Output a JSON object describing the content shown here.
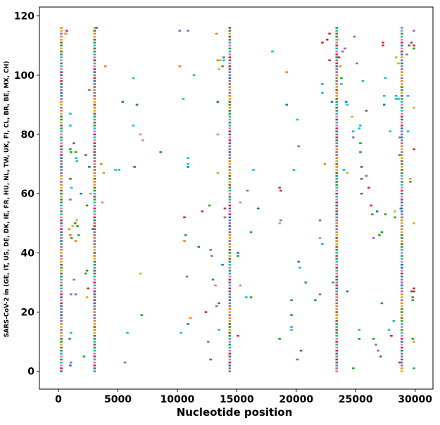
{
  "chart_data": {
    "type": "scatter",
    "title": "",
    "xlabel": "Nucleotide position",
    "ylabel": "SARS-CoV-2 in (GE, IT, US, DE, DK, IE, FR, HU, NL, TW, UK, FI, CL, BR, BE, MX, CH)",
    "xlim": [
      -1600,
      31500
    ],
    "ylim": [
      -6,
      123
    ],
    "xticks": [
      0,
      5000,
      10000,
      15000,
      20000,
      25000,
      30000
    ],
    "xtick_labels": [
      "0",
      "5000",
      "10000",
      "15000",
      "20000",
      "25000",
      "30000"
    ],
    "yticks": [
      0,
      20,
      40,
      60,
      80,
      100,
      120
    ],
    "ytick_labels": [
      "0",
      "20",
      "40",
      "60",
      "80",
      "100",
      "120"
    ],
    "grid": false,
    "legend": "none",
    "palette": [
      "#1f77b4",
      "#ff7f0e",
      "#2ca02c",
      "#d62728",
      "#9467bd",
      "#8c564b",
      "#e377c2",
      "#7f7f7f",
      "#bcbd22",
      "#17becf"
    ],
    "dense_columns": [
      241,
      3037,
      14408,
      23403,
      28881
    ],
    "genome_count": 117,
    "scatter_points": [
      [
        1000,
        87,
        9
      ],
      [
        1000,
        83,
        9
      ],
      [
        1000,
        75,
        2
      ],
      [
        1050,
        74,
        2
      ],
      [
        1000,
        65,
        5
      ],
      [
        1100,
        62,
        9
      ],
      [
        1000,
        58,
        4
      ],
      [
        1200,
        49,
        8
      ],
      [
        900,
        48,
        1
      ],
      [
        1000,
        46,
        1
      ],
      [
        1100,
        45,
        2
      ],
      [
        1050,
        26,
        4
      ],
      [
        1050,
        13,
        9
      ],
      [
        950,
        11,
        2
      ],
      [
        1050,
        3,
        4
      ],
      [
        1000,
        2,
        0
      ],
      [
        1300,
        77,
        5
      ],
      [
        1500,
        72,
        9
      ],
      [
        1550,
        71,
        9
      ],
      [
        1450,
        74,
        2
      ],
      [
        1600,
        49,
        2
      ],
      [
        1700,
        46,
        2
      ],
      [
        1450,
        26,
        4
      ],
      [
        1550,
        51,
        8
      ],
      [
        1300,
        31,
        4
      ],
      [
        1900,
        60,
        0
      ],
      [
        2150,
        5,
        2
      ],
      [
        2400,
        34,
        2
      ],
      [
        2400,
        56,
        2
      ],
      [
        2500,
        28,
        3
      ],
      [
        2600,
        69,
        0
      ],
      [
        2600,
        95,
        7
      ],
      [
        2400,
        25,
        8
      ],
      [
        3200,
        116,
        5
      ],
      [
        3600,
        70,
        1
      ],
      [
        3800,
        67,
        8
      ],
      [
        3700,
        57,
        6
      ],
      [
        3950,
        103,
        1
      ],
      [
        4800,
        68,
        9
      ],
      [
        5100,
        68,
        9
      ],
      [
        5400,
        91,
        0
      ],
      [
        6300,
        99,
        9
      ],
      [
        6300,
        83,
        9
      ],
      [
        6600,
        90,
        0
      ],
      [
        6400,
        69,
        0
      ],
      [
        6900,
        80,
        6
      ],
      [
        7100,
        78,
        6
      ],
      [
        6900,
        33,
        8
      ],
      [
        7000,
        19,
        2
      ],
      [
        5800,
        13,
        9
      ],
      [
        5600,
        3,
        4
      ],
      [
        8600,
        74,
        2
      ],
      [
        10200,
        115,
        4
      ],
      [
        10200,
        103,
        1
      ],
      [
        10500,
        92,
        9
      ],
      [
        10900,
        115,
        4
      ],
      [
        11400,
        100,
        9
      ],
      [
        10600,
        44,
        1
      ],
      [
        10600,
        52,
        3
      ],
      [
        10700,
        46,
        2
      ],
      [
        10800,
        32,
        7
      ],
      [
        10900,
        16,
        0
      ],
      [
        11100,
        18,
        1
      ],
      [
        10900,
        72,
        9
      ],
      [
        10900,
        70,
        9
      ],
      [
        10900,
        69,
        0
      ],
      [
        10300,
        13,
        9
      ],
      [
        11800,
        42,
        0
      ],
      [
        12100,
        54,
        3
      ],
      [
        12400,
        20,
        3
      ],
      [
        12600,
        10,
        7
      ],
      [
        12700,
        56,
        2
      ],
      [
        12900,
        39,
        7
      ],
      [
        12800,
        41,
        4
      ],
      [
        13000,
        31,
        2
      ],
      [
        13300,
        114,
        1
      ],
      [
        13400,
        105,
        1
      ],
      [
        13600,
        105,
        8
      ],
      [
        13500,
        102,
        8
      ],
      [
        13400,
        91,
        0
      ],
      [
        13400,
        80,
        6
      ],
      [
        13400,
        67,
        8
      ],
      [
        13300,
        22,
        4
      ],
      [
        13200,
        29,
        6
      ],
      [
        13500,
        23,
        5
      ],
      [
        13500,
        14,
        9
      ],
      [
        12800,
        4,
        2
      ],
      [
        13800,
        103,
        2
      ],
      [
        13900,
        106,
        2
      ],
      [
        13800,
        36,
        0
      ],
      [
        13900,
        105,
        9
      ],
      [
        14000,
        52,
        7
      ],
      [
        14000,
        55,
        5
      ],
      [
        15100,
        40,
        0
      ],
      [
        15100,
        39,
        2
      ],
      [
        15100,
        12,
        3
      ],
      [
        15300,
        57,
        6
      ],
      [
        15300,
        29,
        6
      ],
      [
        15900,
        61,
        4
      ],
      [
        15800,
        25,
        9
      ],
      [
        16200,
        47,
        2
      ],
      [
        16200,
        25,
        2
      ],
      [
        16400,
        68,
        9
      ],
      [
        16800,
        55,
        0
      ],
      [
        18000,
        108,
        9
      ],
      [
        18600,
        62,
        5
      ],
      [
        18700,
        61,
        3
      ],
      [
        18600,
        50,
        8
      ],
      [
        18700,
        51,
        4
      ],
      [
        18600,
        11,
        2
      ],
      [
        19200,
        101,
        1
      ],
      [
        19200,
        90,
        0
      ],
      [
        19600,
        24,
        2
      ],
      [
        19600,
        19,
        2
      ],
      [
        19600,
        15,
        9
      ],
      [
        19600,
        14,
        9
      ],
      [
        19800,
        68,
        9
      ],
      [
        20100,
        85,
        9
      ],
      [
        20200,
        76,
        4
      ],
      [
        20200,
        37,
        0
      ],
      [
        20300,
        35,
        9
      ],
      [
        20100,
        4,
        2
      ],
      [
        20400,
        7,
        5
      ],
      [
        20800,
        30,
        2
      ],
      [
        21600,
        24,
        2
      ],
      [
        22000,
        51,
        4
      ],
      [
        22000,
        45,
        6
      ],
      [
        22000,
        26,
        4
      ],
      [
        22200,
        111,
        3
      ],
      [
        22200,
        97,
        9
      ],
      [
        22200,
        94,
        9
      ],
      [
        22400,
        70,
        1
      ],
      [
        22200,
        43,
        9
      ],
      [
        22600,
        112,
        3
      ],
      [
        22800,
        105,
        3
      ],
      [
        23000,
        91,
        0
      ],
      [
        23100,
        30,
        2
      ],
      [
        23500,
        112,
        8
      ],
      [
        23600,
        106,
        3
      ],
      [
        23700,
        103,
        1
      ],
      [
        23800,
        99,
        2
      ],
      [
        23800,
        97,
        9
      ],
      [
        24000,
        68,
        9
      ],
      [
        24200,
        91,
        0
      ],
      [
        24300,
        90,
        9
      ],
      [
        24300,
        67,
        8
      ],
      [
        24300,
        27,
        0
      ],
      [
        24700,
        86,
        8
      ],
      [
        24800,
        81,
        9
      ],
      [
        24800,
        79,
        4
      ],
      [
        24900,
        113,
        4
      ],
      [
        25100,
        104,
        7
      ],
      [
        25300,
        82,
        9
      ],
      [
        25400,
        83,
        9
      ],
      [
        25400,
        77,
        2
      ],
      [
        25400,
        74,
        2
      ],
      [
        25500,
        69,
        0
      ],
      [
        25500,
        65,
        5
      ],
      [
        25500,
        60,
        5
      ],
      [
        25600,
        98,
        9
      ],
      [
        25900,
        88,
        5
      ],
      [
        25900,
        66,
        4
      ],
      [
        25300,
        14,
        9
      ],
      [
        25300,
        11,
        2
      ],
      [
        24800,
        1,
        2
      ],
      [
        26100,
        62,
        3
      ],
      [
        26300,
        56,
        3
      ],
      [
        26400,
        53,
        2
      ],
      [
        26500,
        45,
        4
      ],
      [
        26500,
        11,
        2
      ],
      [
        26700,
        9,
        7
      ],
      [
        26900,
        7,
        4
      ],
      [
        27100,
        5,
        5
      ],
      [
        26800,
        54,
        0
      ],
      [
        27000,
        46,
        2
      ],
      [
        27200,
        47,
        2
      ],
      [
        27200,
        23,
        2
      ],
      [
        27300,
        111,
        3
      ],
      [
        27300,
        110,
        3
      ],
      [
        27400,
        93,
        9
      ],
      [
        27500,
        53,
        2
      ],
      [
        27800,
        14,
        9
      ],
      [
        27900,
        81,
        9
      ],
      [
        28000,
        12,
        3
      ],
      [
        28200,
        17,
        9
      ],
      [
        28300,
        54,
        8
      ],
      [
        28300,
        52,
        2
      ],
      [
        28400,
        106,
        8
      ],
      [
        28400,
        92,
        9
      ],
      [
        28600,
        104,
        8
      ],
      [
        28700,
        79,
        7
      ],
      [
        28700,
        73,
        2
      ],
      [
        28800,
        55,
        0
      ],
      [
        28900,
        36,
        0
      ],
      [
        28700,
        3,
        3
      ],
      [
        29300,
        107,
        7
      ],
      [
        29400,
        93,
        9
      ],
      [
        29400,
        81,
        9
      ],
      [
        29600,
        65,
        8
      ],
      [
        29600,
        64,
        7
      ],
      [
        29700,
        27,
        0
      ],
      [
        29800,
        24,
        2
      ],
      [
        29800,
        11,
        2
      ],
      [
        29900,
        10,
        8
      ],
      [
        29900,
        1,
        2
      ],
      [
        29800,
        25,
        2
      ],
      [
        29900,
        27,
        3
      ],
      [
        29900,
        28,
        3
      ],
      [
        29900,
        50,
        8
      ],
      [
        29900,
        110,
        3
      ],
      [
        29900,
        109,
        2
      ],
      [
        29900,
        115,
        4
      ],
      [
        29900,
        75,
        3
      ],
      [
        29900,
        89,
        8
      ],
      [
        29500,
        110,
        5
      ],
      [
        29700,
        111,
        5
      ],
      [
        28900,
        106,
        8
      ],
      [
        28600,
        92,
        9
      ],
      [
        28400,
        93,
        9
      ],
      [
        27400,
        90,
        0
      ],
      [
        27500,
        99,
        9
      ],
      [
        24100,
        109,
        4
      ],
      [
        23900,
        108,
        4
      ],
      [
        22800,
        114,
        3
      ],
      [
        600,
        114,
        1
      ],
      [
        700,
        115,
        3
      ],
      [
        1400,
        50,
        2
      ],
      [
        1450,
        44,
        1
      ],
      [
        2300,
        73,
        5
      ],
      [
        2300,
        33,
        2
      ],
      [
        2700,
        60,
        6
      ],
      [
        2900,
        48,
        5
      ]
    ]
  }
}
